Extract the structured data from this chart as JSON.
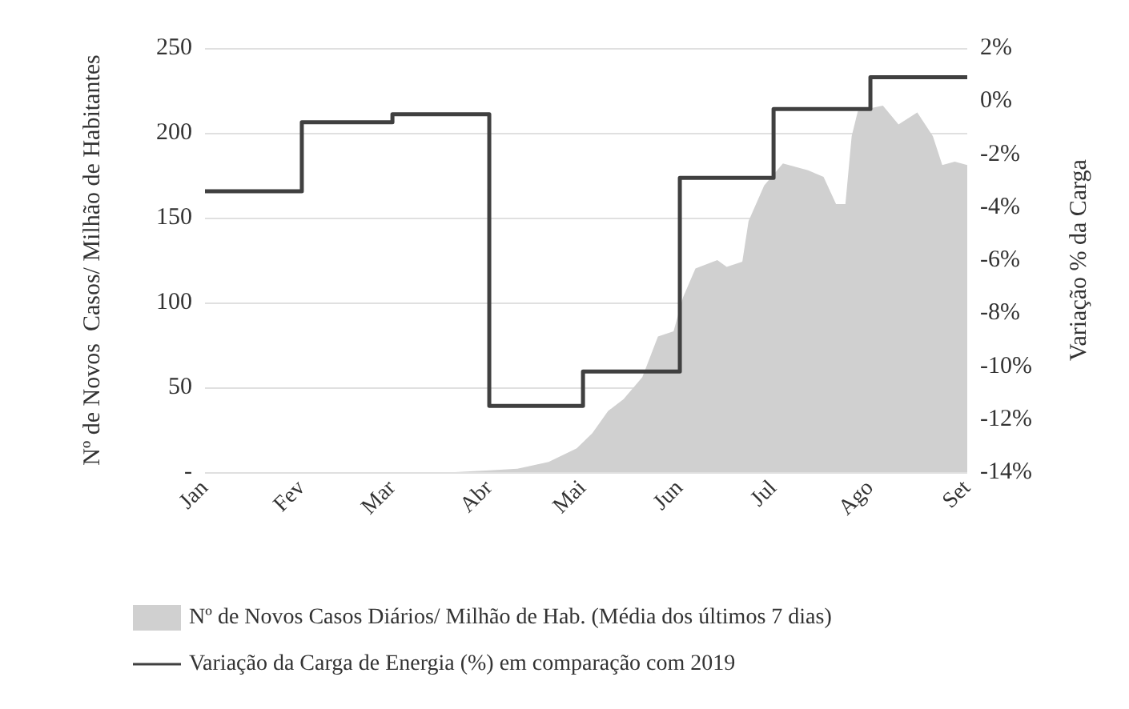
{
  "chart_data": {
    "type": "area",
    "ylabel": "Nº de Novos  Casos/ Milhão de Habitantes",
    "y2label": "Variação % da Carga",
    "xlim": [
      "--01-01",
      "--09-01"
    ],
    "xticks": [
      {
        "value": "--01-01",
        "label": "Jan"
      },
      {
        "value": "--02-01",
        "label": "Fev"
      },
      {
        "value": "--03-01",
        "label": "Mar"
      },
      {
        "value": "--04-01",
        "label": "Abr"
      },
      {
        "value": "--05-01",
        "label": "Mai"
      },
      {
        "value": "--06-01",
        "label": "Jun"
      },
      {
        "value": "--07-01",
        "label": "Jul"
      },
      {
        "value": "--08-01",
        "label": "Ago"
      },
      {
        "value": "--09-01",
        "label": "Set"
      }
    ],
    "ylim": [
      0,
      250
    ],
    "yticks": [
      {
        "value": 0,
        "label": "-"
      },
      50,
      100,
      150,
      200,
      250
    ],
    "y2lim": [
      -14,
      2
    ],
    "y2ticks": [
      {
        "value": -14,
        "label": "-14%"
      },
      {
        "value": -12,
        "label": "-12%"
      },
      {
        "value": -10,
        "label": "-10%"
      },
      {
        "value": -8,
        "label": "-8%"
      },
      {
        "value": -6,
        "label": "-6%"
      },
      {
        "value": -4,
        "label": "-4%"
      },
      {
        "value": -2,
        "label": "-2%"
      },
      {
        "value": 0,
        "label": "0%"
      },
      {
        "value": 2,
        "label": "2%"
      }
    ],
    "grid": "y",
    "legend": "bottom",
    "marker": "none",
    "series": [
      {
        "name": "Nº de Novos Casos Diários/ Milhão de Hab. (Média dos últimos 7 dias)",
        "type": "area",
        "color": "#d0d0d0",
        "x": [
          "--03-21",
          "--03-31",
          "--04-10",
          "--04-20",
          "--04-29",
          "--05-04",
          "--05-09",
          "--05-14",
          "--05-20",
          "--05-25",
          "--05-30",
          "--06-02",
          "--06-06",
          "--06-13",
          "--06-16",
          "--06-21",
          "--06-23",
          "--06-28",
          "--07-04",
          "--07-12",
          "--07-17",
          "--07-21",
          "--07-24",
          "--07-26",
          "--07-28",
          "--08-05",
          "--08-10",
          "--08-16",
          "--08-21",
          "--08-24",
          "--08-28",
          "--09-01"
        ],
        "values": [
          0,
          1,
          2,
          6,
          14,
          23,
          36,
          43,
          56,
          80,
          83,
          103,
          120,
          125,
          121,
          124,
          148,
          169,
          182,
          178,
          174,
          158,
          158,
          198,
          213,
          216,
          205,
          212,
          198,
          181,
          183,
          181
        ]
      },
      {
        "name": "Variação da Carga de Energia (%) em comparação com 2019",
        "type": "step",
        "axis": "y2",
        "color": "#404040",
        "line_style": "solid",
        "x": [
          "--01-01",
          "--02-01",
          "--03-01",
          "--04-01",
          "--05-01",
          "--06-01",
          "--07-01",
          "--08-01",
          "--09-01"
        ],
        "values": [
          -3.4,
          -0.8,
          -0.5,
          -11.5,
          -10.2,
          -2.9,
          -0.3,
          0.9,
          0.9
        ]
      }
    ]
  }
}
